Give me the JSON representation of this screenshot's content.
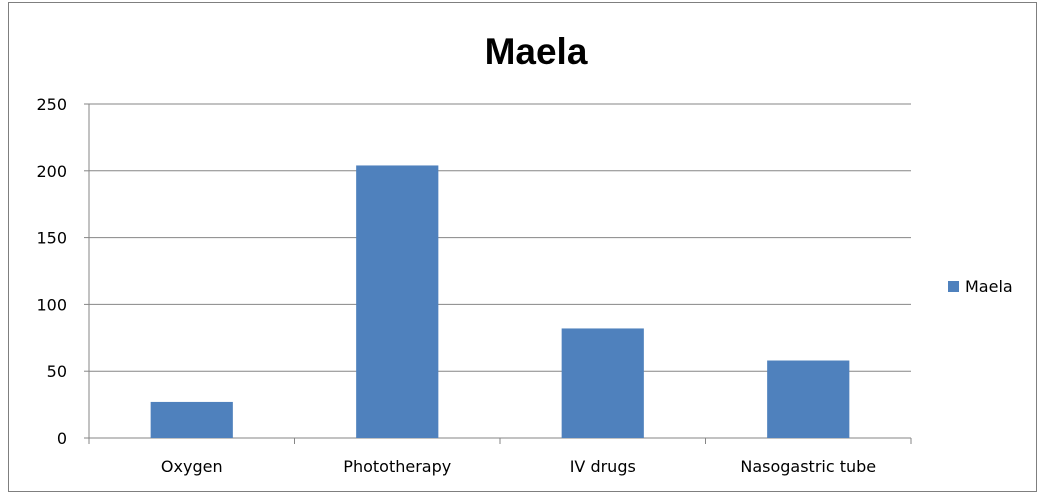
{
  "chart_data": {
    "type": "bar",
    "title": "Maela",
    "categories": [
      "Oxygen",
      "Phototherapy",
      "IV drugs",
      "Nasogastric tube"
    ],
    "series": [
      {
        "name": "Maela",
        "values": [
          27,
          204,
          82,
          58
        ],
        "color": "#4f81bd"
      }
    ],
    "xlabel": "",
    "ylabel": "",
    "ylim": [
      0,
      250
    ],
    "yticks": [
      0,
      50,
      100,
      150,
      200,
      250
    ],
    "grid": true,
    "legend_position": "right"
  }
}
